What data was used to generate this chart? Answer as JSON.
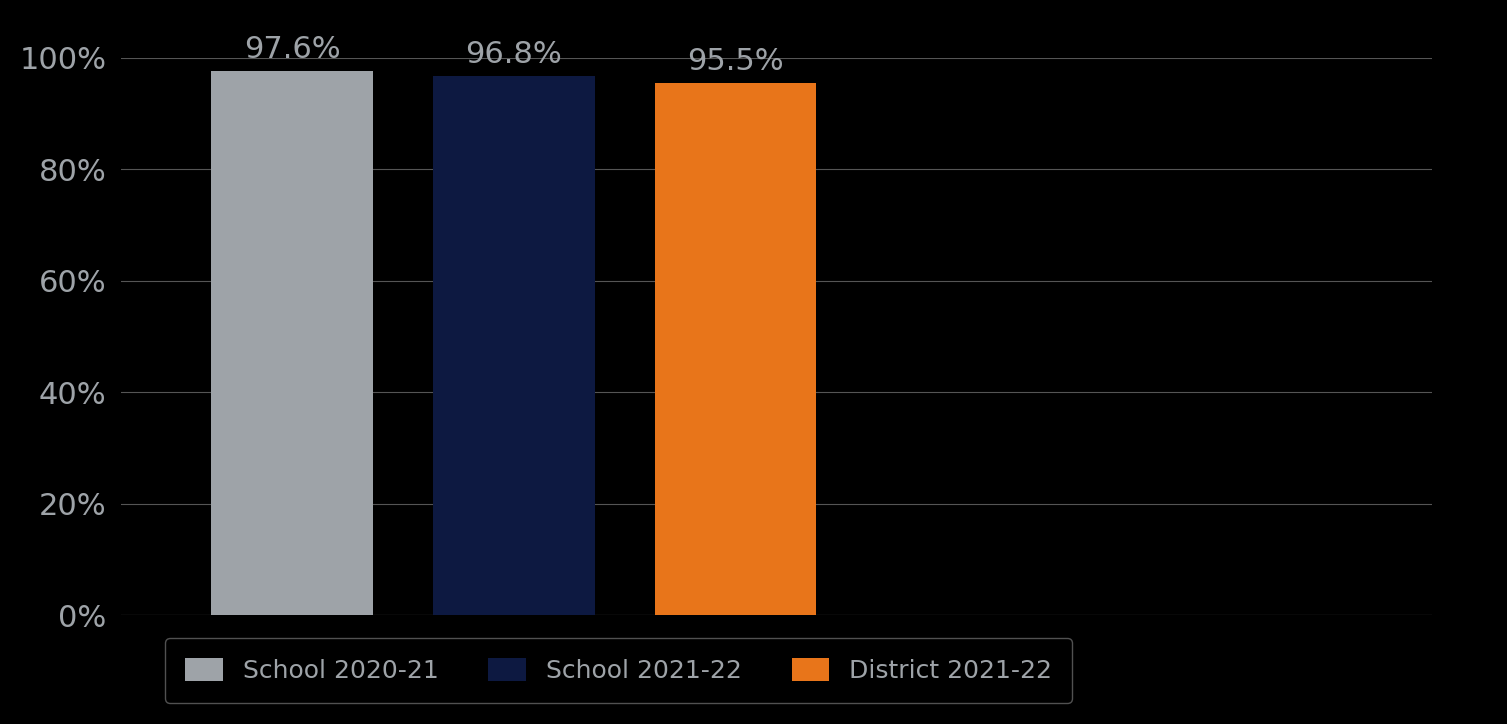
{
  "categories": [
    "School 2020-21",
    "School 2021-22",
    "District 2021-22"
  ],
  "values": [
    0.976,
    0.968,
    0.955
  ],
  "bar_colors": [
    "#9EA3A8",
    "#0D1941",
    "#E8751A"
  ],
  "bar_labels": [
    "97.6%",
    "96.8%",
    "95.5%"
  ],
  "background_color": "#000000",
  "text_color": "#9EA3A8",
  "label_color": "#9EA3A8",
  "ylim": [
    0,
    1.0
  ],
  "yticks": [
    0.0,
    0.2,
    0.4,
    0.6,
    0.8,
    1.0
  ],
  "ytick_labels": [
    "0%",
    "20%",
    "40%",
    "60%",
    "80%",
    "100%"
  ],
  "grid_color": "#555555",
  "legend_labels": [
    "School 2020-21",
    "School 2021-22",
    "District 2021-22"
  ],
  "bar_label_fontsize": 22,
  "tick_fontsize": 22,
  "legend_fontsize": 18,
  "bar_width": 0.16,
  "x_positions": [
    0.22,
    0.44,
    0.66
  ],
  "xlim": [
    0.05,
    1.35
  ]
}
